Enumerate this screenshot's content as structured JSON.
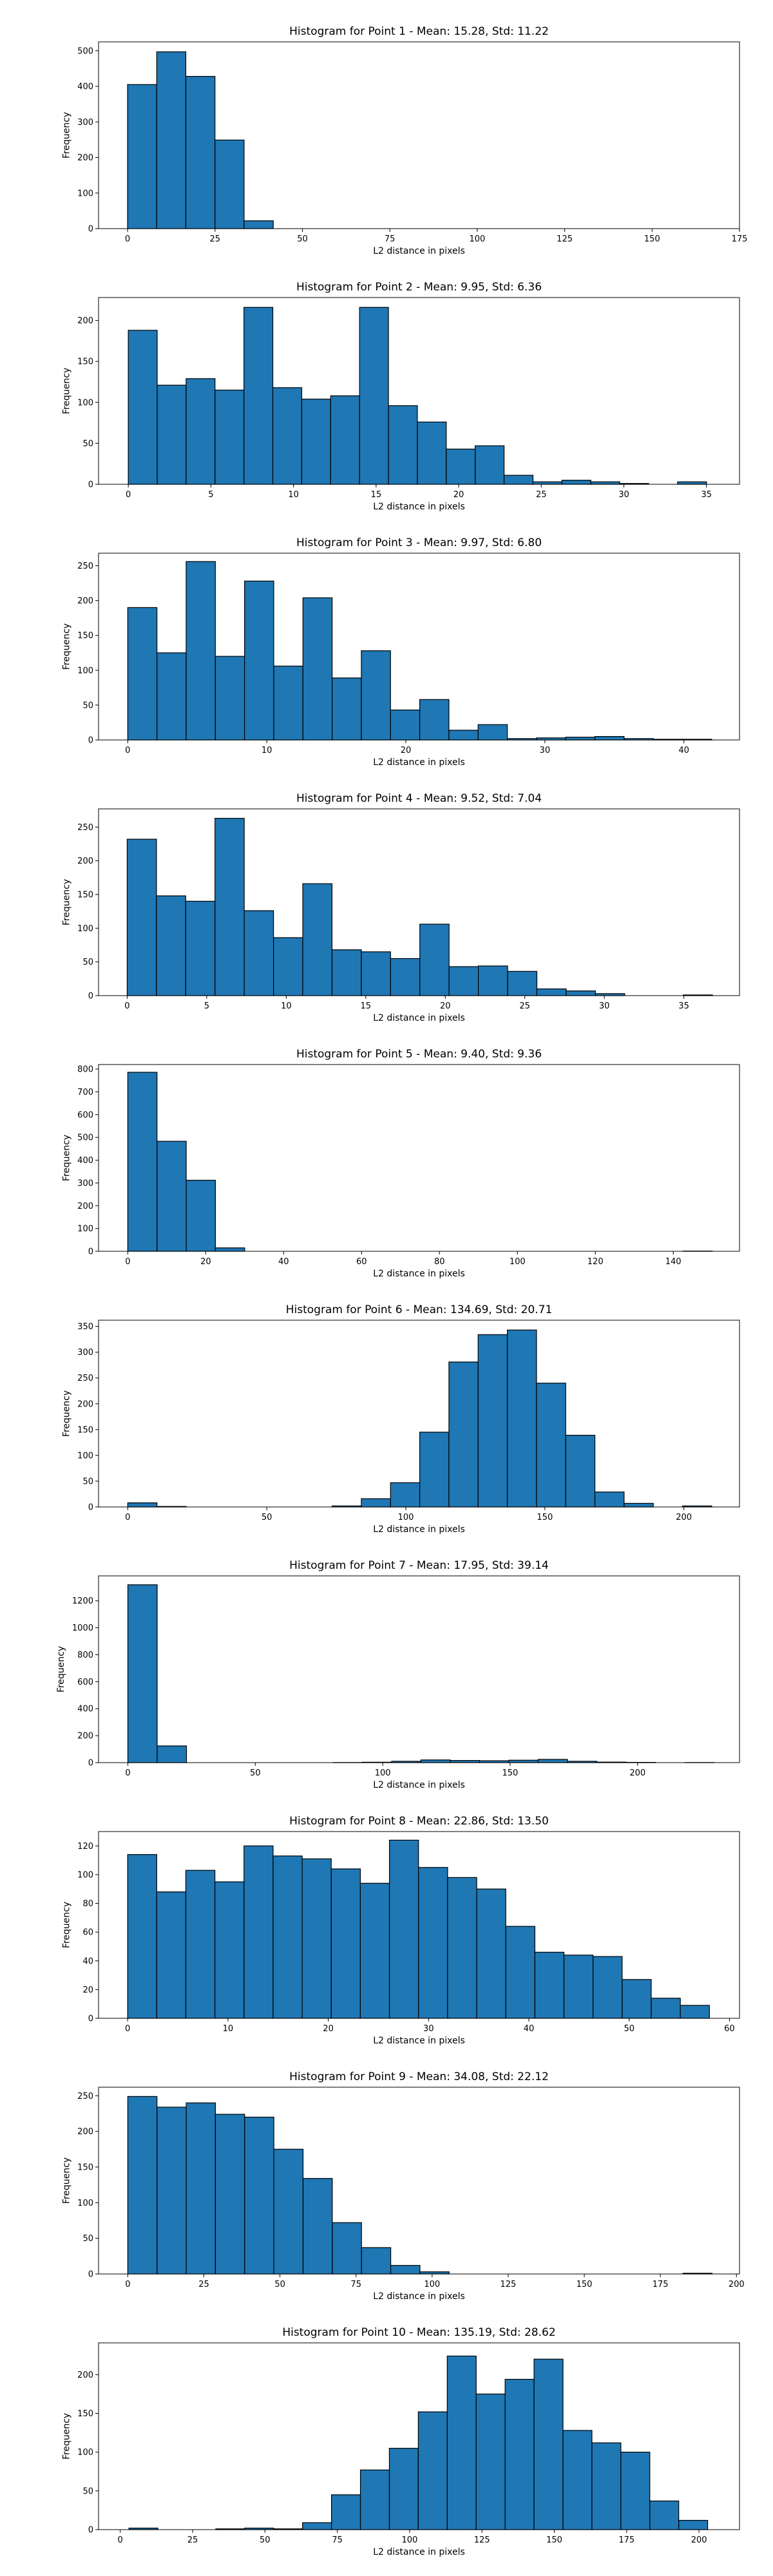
{
  "chart_data": [
    {
      "type": "bar",
      "title": "Histogram for Point 1 - Mean: 15.28, Std: 11.22",
      "xlabel": "L2 distance in pixels",
      "ylabel": "Frequency",
      "xlim": [
        -8.3,
        175.0
      ],
      "ylim": [
        0,
        525
      ],
      "xticks": [
        0,
        25,
        50,
        75,
        100,
        125,
        150,
        175
      ],
      "yticks": [
        0,
        100,
        200,
        300,
        400,
        500
      ],
      "bin_start": 0,
      "bin_width": 8.33,
      "values": [
        405,
        497,
        428,
        249,
        22,
        0,
        0,
        0,
        0,
        0,
        0,
        0,
        0,
        0,
        0,
        0,
        0,
        0,
        0,
        0
      ],
      "grid": false,
      "color": "#1f77b4"
    },
    {
      "type": "bar",
      "title": "Histogram for Point 2 - Mean: 9.95, Std: 6.36",
      "xlabel": "L2 distance in pixels",
      "ylabel": "Frequency",
      "xlim": [
        -1.8,
        37.0
      ],
      "ylim": [
        0,
        228
      ],
      "xticks": [
        0,
        5,
        10,
        15,
        20,
        25,
        30,
        35
      ],
      "yticks": [
        0,
        50,
        100,
        150,
        200
      ],
      "bin_start": 0,
      "bin_width": 1.75,
      "values": [
        188,
        121,
        129,
        115,
        216,
        118,
        104,
        108,
        216,
        96,
        76,
        43,
        47,
        11,
        3,
        5,
        3,
        1,
        0,
        3
      ],
      "grid": false,
      "color": "#1f77b4"
    },
    {
      "type": "bar",
      "title": "Histogram for Point 3 - Mean: 9.97, Std: 6.80",
      "xlabel": "L2 distance in pixels",
      "ylabel": "Frequency",
      "xlim": [
        -2.1,
        44.0
      ],
      "ylim": [
        0,
        268
      ],
      "xticks": [
        0,
        10,
        20,
        30,
        40
      ],
      "yticks": [
        0,
        50,
        100,
        150,
        200,
        250
      ],
      "bin_start": 0,
      "bin_width": 2.1,
      "values": [
        190,
        125,
        256,
        120,
        228,
        106,
        204,
        89,
        128,
        43,
        58,
        14,
        22,
        2,
        3,
        4,
        5,
        2,
        1,
        1
      ],
      "grid": false,
      "color": "#1f77b4"
    },
    {
      "type": "bar",
      "title": "Histogram for Point 4 - Mean: 9.52, Std: 7.04",
      "xlabel": "L2 distance in pixels",
      "ylabel": "Frequency",
      "xlim": [
        -1.8,
        38.5
      ],
      "ylim": [
        0,
        277
      ],
      "xticks": [
        0,
        5,
        10,
        15,
        20,
        25,
        30,
        35
      ],
      "yticks": [
        0,
        50,
        100,
        150,
        200,
        250
      ],
      "bin_start": 0,
      "bin_width": 1.84,
      "values": [
        232,
        148,
        140,
        263,
        126,
        86,
        166,
        68,
        65,
        55,
        106,
        43,
        44,
        36,
        10,
        7,
        3,
        0,
        0,
        1
      ],
      "grid": false,
      "color": "#1f77b4"
    },
    {
      "type": "bar",
      "title": "Histogram for Point 5 - Mean: 9.40, Std: 9.36",
      "xlabel": "L2 distance in pixels",
      "ylabel": "Frequency",
      "xlim": [
        -7.5,
        157.0
      ],
      "ylim": [
        0,
        820
      ],
      "xticks": [
        0,
        20,
        40,
        60,
        80,
        100,
        120,
        140
      ],
      "yticks": [
        0,
        100,
        200,
        300,
        400,
        500,
        600,
        700,
        800
      ],
      "bin_start": 0,
      "bin_width": 7.5,
      "values": [
        786,
        483,
        312,
        15,
        0,
        0,
        0,
        0,
        0,
        0,
        0,
        0,
        0,
        0,
        0,
        0,
        0,
        0,
        0,
        1
      ],
      "grid": false,
      "color": "#1f77b4"
    },
    {
      "type": "bar",
      "title": "Histogram for Point 6 - Mean: 134.69, Std: 20.71",
      "xlabel": "L2 distance in pixels",
      "ylabel": "Frequency",
      "xlim": [
        -10.5,
        220.0
      ],
      "ylim": [
        0,
        362
      ],
      "xticks": [
        0,
        50,
        100,
        150,
        200
      ],
      "yticks": [
        0,
        50,
        100,
        150,
        200,
        250,
        300,
        350
      ],
      "bin_start": 0,
      "bin_width": 10.5,
      "values": [
        8,
        1,
        0,
        0,
        0,
        0,
        0,
        2,
        16,
        47,
        145,
        281,
        334,
        343,
        240,
        139,
        29,
        7,
        0,
        2
      ],
      "grid": false,
      "color": "#1f77b4"
    },
    {
      "type": "bar",
      "title": "Histogram for Point 7 - Mean: 17.95, Std: 39.14",
      "xlabel": "L2 distance in pixels",
      "ylabel": "Frequency",
      "xlim": [
        -11.5,
        240.0
      ],
      "ylim": [
        0,
        1385
      ],
      "xticks": [
        0,
        50,
        100,
        150,
        200
      ],
      "yticks": [
        0,
        200,
        400,
        600,
        800,
        1000,
        1200
      ],
      "bin_start": 0,
      "bin_width": 11.5,
      "values": [
        1319,
        124,
        0,
        0,
        0,
        0,
        0,
        1,
        3,
        10,
        20,
        16,
        14,
        18,
        24,
        10,
        4,
        2,
        0,
        1
      ],
      "grid": false,
      "color": "#1f77b4"
    },
    {
      "type": "bar",
      "title": "Histogram for Point 8 - Mean: 22.86, Std: 13.50",
      "xlabel": "L2 distance in pixels",
      "ylabel": "Frequency",
      "xlim": [
        -2.9,
        61.0
      ],
      "ylim": [
        0,
        130
      ],
      "xticks": [
        0,
        10,
        20,
        30,
        40,
        50,
        60
      ],
      "yticks": [
        0,
        20,
        40,
        60,
        80,
        100,
        120
      ],
      "bin_start": 0,
      "bin_width": 2.9,
      "values": [
        114,
        88,
        103,
        95,
        120,
        113,
        111,
        104,
        94,
        124,
        105,
        98,
        90,
        64,
        46,
        44,
        43,
        27,
        14,
        9
      ],
      "grid": false,
      "color": "#1f77b4"
    },
    {
      "type": "bar",
      "title": "Histogram for Point 9 - Mean: 34.08, Std: 22.12",
      "xlabel": "L2 distance in pixels",
      "ylabel": "Frequency",
      "xlim": [
        -9.6,
        201.0
      ],
      "ylim": [
        0,
        262
      ],
      "xticks": [
        0,
        25,
        50,
        75,
        100,
        125,
        150,
        175,
        200
      ],
      "yticks": [
        0,
        50,
        100,
        150,
        200,
        250
      ],
      "bin_start": 0,
      "bin_width": 9.6,
      "values": [
        249,
        234,
        240,
        224,
        220,
        175,
        134,
        72,
        37,
        12,
        3,
        0,
        0,
        0,
        0,
        0,
        0,
        0,
        0,
        1
      ],
      "grid": false,
      "color": "#1f77b4"
    },
    {
      "type": "bar",
      "title": "Histogram for Point 10 - Mean: 135.19, Std: 28.62",
      "xlabel": "L2 distance in pixels",
      "ylabel": "Frequency",
      "xlim": [
        -7.5,
        214.0
      ],
      "ylim": [
        0,
        241
      ],
      "xticks": [
        0,
        25,
        50,
        75,
        100,
        125,
        150,
        175,
        200
      ],
      "yticks": [
        0,
        50,
        100,
        150,
        200
      ],
      "bin_start": 3,
      "bin_width": 10.0,
      "values": [
        2,
        0,
        0,
        1,
        2,
        1,
        9,
        45,
        77,
        105,
        152,
        224,
        175,
        194,
        220,
        128,
        112,
        100,
        37,
        12
      ],
      "grid": false,
      "color": "#1f77b4"
    }
  ]
}
